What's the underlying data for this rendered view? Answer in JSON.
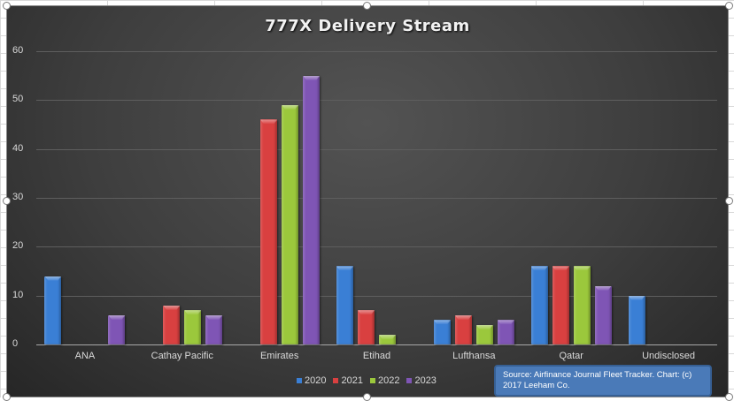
{
  "chart_data": {
    "type": "bar",
    "title": "777X Delivery Stream",
    "xlabel": "",
    "ylabel": "",
    "ylim": [
      0,
      60
    ],
    "yticks": [
      0,
      10,
      20,
      30,
      40,
      50,
      60
    ],
    "grid": true,
    "legend_position": "bottom",
    "categories": [
      "ANA",
      "Cathay Pacific",
      "Emirates",
      "Etihad",
      "Lufthansa",
      "Qatar",
      "Undisclosed"
    ],
    "series": [
      {
        "name": "2020",
        "color": "#3a7fd5",
        "values": [
          14,
          0,
          0,
          16,
          5,
          16,
          10
        ]
      },
      {
        "name": "2021",
        "color": "#d94040",
        "values": [
          0,
          8,
          46,
          7,
          6,
          16,
          0
        ]
      },
      {
        "name": "2022",
        "color": "#9bc83c",
        "values": [
          0,
          7,
          49,
          2,
          4,
          16,
          0
        ]
      },
      {
        "name": "2023",
        "color": "#7f55b5",
        "values": [
          6,
          6,
          55,
          0,
          5,
          12,
          0
        ]
      }
    ],
    "annotations": [
      "Source: Airfinance Journal Fleet Tracker. Chart: (c) 2017 Leeham Co."
    ]
  },
  "source_note": {
    "line1": "Source: Airfinance Journal Fleet Tracker. Chart: (c)",
    "line2": "2017 Leeham Co."
  }
}
